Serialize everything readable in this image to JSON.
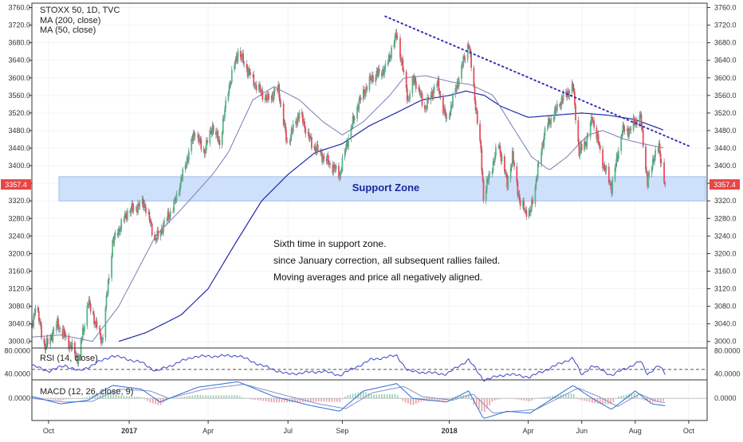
{
  "header": {
    "symbol_line": "STOXX 50, 1D, TVC",
    "ma200_label": "MA (200, close)",
    "ma50_label": "MA (50, close)"
  },
  "annotations": {
    "support_zone_label": "Support Zone",
    "comment_lines": [
      "Sixth time in support zone.",
      "since January correction, all subsequent rallies failed.",
      "Moving averages and price all negatively aligned."
    ]
  },
  "last_price_label": "3357.4",
  "rsi": {
    "label": "RSI (14, close)",
    "tick_labels": [
      "80.0000",
      "40.0000"
    ]
  },
  "macd": {
    "label": "MACD (12, 26, close, 9)",
    "tick_labels": [
      "0.0000"
    ]
  },
  "colors": {
    "up": "#53b987",
    "down": "#eb4d5c",
    "ma200": "#2029a8",
    "ma50": "#7a7eb5",
    "trendline": "#2f2fb5",
    "support_fill": "#cfe0fb",
    "support_text": "#1a2a9c",
    "rsi_line": "#3d44c8",
    "macd_line": "#2a6fd6",
    "signal_line": "#8a8fc8",
    "last_price": "#e84545"
  },
  "chart_data": [
    {
      "type": "candlestick",
      "title": "STOXX 50, 1D, TVC",
      "x_tick_labels": [
        "Oct",
        "2017",
        "Apr",
        "Jul",
        "Sep",
        "2018",
        "Apr",
        "Jun",
        "Aug",
        "Oct"
      ],
      "y_tick_labels": [
        "3760.0",
        "3720.0",
        "3680.0",
        "3640.0",
        "3600.0",
        "3560.0",
        "3520.0",
        "3480.0",
        "3440.0",
        "3400.0",
        "3360.0",
        "3320.0",
        "3280.0",
        "3240.0",
        "3200.0",
        "3160.0",
        "3120.0",
        "3080.0",
        "3040.0",
        "3000.0"
      ],
      "ylim": [
        2985,
        3770
      ],
      "x_range": [
        "2016-09-12",
        "2018-10-22"
      ],
      "price_key_points": [
        [
          "2016-09-12",
          3030
        ],
        [
          "2016-09-16",
          3085
        ],
        [
          "2016-09-27",
          2985
        ],
        [
          "2016-10-11",
          3040
        ],
        [
          "2016-11-04",
          2960
        ],
        [
          "2016-11-15",
          3090
        ],
        [
          "2016-12-01",
          3000
        ],
        [
          "2016-12-13",
          3225
        ],
        [
          "2016-12-30",
          3295
        ],
        [
          "2017-01-18",
          3315
        ],
        [
          "2017-01-31",
          3230
        ],
        [
          "2017-02-21",
          3310
        ],
        [
          "2017-03-03",
          3380
        ],
        [
          "2017-03-17",
          3480
        ],
        [
          "2017-03-27",
          3430
        ],
        [
          "2017-04-06",
          3490
        ],
        [
          "2017-04-14",
          3450
        ],
        [
          "2017-04-24",
          3575
        ],
        [
          "2017-05-05",
          3660
        ],
        [
          "2017-05-26",
          3580
        ],
        [
          "2017-06-08",
          3550
        ],
        [
          "2017-06-20",
          3575
        ],
        [
          "2017-06-30",
          3450
        ],
        [
          "2017-07-14",
          3520
        ],
        [
          "2017-07-28",
          3450
        ],
        [
          "2017-08-10",
          3420
        ],
        [
          "2017-08-29",
          3380
        ],
        [
          "2017-09-06",
          3450
        ],
        [
          "2017-09-19",
          3540
        ],
        [
          "2017-10-04",
          3600
        ],
        [
          "2017-10-20",
          3620
        ],
        [
          "2017-11-02",
          3700
        ],
        [
          "2017-11-15",
          3550
        ],
        [
          "2017-11-22",
          3600
        ],
        [
          "2017-12-04",
          3530
        ],
        [
          "2017-12-18",
          3590
        ],
        [
          "2017-12-29",
          3500
        ],
        [
          "2018-01-23",
          3680
        ],
        [
          "2018-02-06",
          3430
        ],
        [
          "2018-02-09",
          3330
        ],
        [
          "2018-02-26",
          3450
        ],
        [
          "2018-03-08",
          3360
        ],
        [
          "2018-03-14",
          3420
        ],
        [
          "2018-03-23",
          3310
        ],
        [
          "2018-04-03",
          3290
        ],
        [
          "2018-04-20",
          3480
        ],
        [
          "2018-05-09",
          3550
        ],
        [
          "2018-05-22",
          3580
        ],
        [
          "2018-05-29",
          3430
        ],
        [
          "2018-06-07",
          3460
        ],
        [
          "2018-06-13",
          3510
        ],
        [
          "2018-06-26",
          3400
        ],
        [
          "2018-07-05",
          3350
        ],
        [
          "2018-07-17",
          3480
        ],
        [
          "2018-07-26",
          3480
        ],
        [
          "2018-07-31",
          3500
        ],
        [
          "2018-08-07",
          3510
        ],
        [
          "2018-08-15",
          3360
        ],
        [
          "2018-08-22",
          3420
        ],
        [
          "2018-08-28",
          3440
        ],
        [
          "2018-09-04",
          3357.4
        ]
      ],
      "ma50_key_points": [
        [
          "2016-09-12",
          3010
        ],
        [
          "2016-10-15",
          3015
        ],
        [
          "2016-11-20",
          3000
        ],
        [
          "2016-12-20",
          3080
        ],
        [
          "2017-01-31",
          3240
        ],
        [
          "2017-03-01",
          3300
        ],
        [
          "2017-04-06",
          3380
        ],
        [
          "2017-04-24",
          3430
        ],
        [
          "2017-05-22",
          3550
        ],
        [
          "2017-06-15",
          3580
        ],
        [
          "2017-07-14",
          3550
        ],
        [
          "2017-08-10",
          3500
        ],
        [
          "2017-09-01",
          3470
        ],
        [
          "2017-09-25",
          3500
        ],
        [
          "2017-10-25",
          3560
        ],
        [
          "2017-11-10",
          3600
        ],
        [
          "2017-12-05",
          3605
        ],
        [
          "2018-01-05",
          3590
        ],
        [
          "2018-01-25",
          3585
        ],
        [
          "2018-02-20",
          3560
        ],
        [
          "2018-03-20",
          3470
        ],
        [
          "2018-04-05",
          3420
        ],
        [
          "2018-04-25",
          3390
        ],
        [
          "2018-05-15",
          3420
        ],
        [
          "2018-06-08",
          3470
        ],
        [
          "2018-06-25",
          3480
        ],
        [
          "2018-07-20",
          3460
        ],
        [
          "2018-08-10",
          3450
        ],
        [
          "2018-09-04",
          3440
        ]
      ],
      "ma200_key_points": [
        [
          "2016-12-20",
          3000
        ],
        [
          "2017-01-20",
          3020
        ],
        [
          "2017-03-01",
          3060
        ],
        [
          "2017-04-01",
          3120
        ],
        [
          "2017-05-01",
          3220
        ],
        [
          "2017-06-01",
          3320
        ],
        [
          "2017-07-01",
          3380
        ],
        [
          "2017-08-01",
          3430
        ],
        [
          "2017-09-01",
          3450
        ],
        [
          "2017-10-01",
          3490
        ],
        [
          "2017-11-01",
          3520
        ],
        [
          "2017-12-01",
          3550
        ],
        [
          "2018-01-01",
          3560
        ],
        [
          "2018-01-20",
          3570
        ],
        [
          "2018-02-10",
          3560
        ],
        [
          "2018-03-01",
          3535
        ],
        [
          "2018-04-01",
          3510
        ],
        [
          "2018-05-01",
          3515
        ],
        [
          "2018-06-01",
          3520
        ],
        [
          "2018-07-01",
          3515
        ],
        [
          "2018-08-01",
          3505
        ],
        [
          "2018-09-04",
          3480
        ]
      ],
      "trendline": [
        [
          "2017-10-20",
          3740
        ],
        [
          "2018-10-01",
          3445
        ]
      ],
      "support_zone": [
        3320,
        3375
      ]
    },
    {
      "type": "line",
      "title": "RSI (14, close)",
      "y_tick_labels": [
        "80.0000",
        "40.0000"
      ],
      "ylim": [
        30,
        85
      ],
      "reference_level": 48,
      "key_points": [
        [
          "2016-09-12",
          55
        ],
        [
          "2016-10-01",
          45
        ],
        [
          "2016-10-20",
          55
        ],
        [
          "2016-11-05",
          45
        ],
        [
          "2016-12-13",
          72
        ],
        [
          "2017-01-15",
          60
        ],
        [
          "2017-02-01",
          45
        ],
        [
          "2017-03-15",
          70
        ],
        [
          "2017-05-05",
          72
        ],
        [
          "2017-06-01",
          55
        ],
        [
          "2017-06-30",
          40
        ],
        [
          "2017-08-10",
          45
        ],
        [
          "2017-08-29",
          38
        ],
        [
          "2017-10-04",
          65
        ],
        [
          "2017-11-02",
          72
        ],
        [
          "2017-11-15",
          45
        ],
        [
          "2017-12-29",
          40
        ],
        [
          "2018-01-23",
          65
        ],
        [
          "2018-02-09",
          30
        ],
        [
          "2018-03-08",
          40
        ],
        [
          "2018-04-03",
          35
        ],
        [
          "2018-05-22",
          68
        ],
        [
          "2018-06-01",
          38
        ],
        [
          "2018-06-13",
          55
        ],
        [
          "2018-07-05",
          38
        ],
        [
          "2018-08-07",
          62
        ],
        [
          "2018-08-15",
          40
        ],
        [
          "2018-08-28",
          55
        ],
        [
          "2018-09-04",
          40
        ]
      ]
    },
    {
      "type": "line",
      "title": "MACD (12, 26, close, 9)",
      "y_tick_labels": [
        "0.0000"
      ],
      "ylim": [
        -60,
        50
      ],
      "series": [
        {
          "key_points": [
            [
              "2016-09-12",
              5
            ],
            [
              "2016-10-15",
              -15
            ],
            [
              "2016-11-15",
              -5
            ],
            [
              "2016-12-13",
              35
            ],
            [
              "2017-01-15",
              25
            ],
            [
              "2017-02-05",
              -10
            ],
            [
              "2017-03-20",
              30
            ],
            [
              "2017-05-05",
              45
            ],
            [
              "2017-06-15",
              5
            ],
            [
              "2017-07-28",
              -20
            ],
            [
              "2017-08-29",
              -35
            ],
            [
              "2017-09-25",
              20
            ],
            [
              "2017-11-02",
              40
            ],
            [
              "2017-11-20",
              0
            ],
            [
              "2017-12-29",
              -10
            ],
            [
              "2018-01-23",
              20
            ],
            [
              "2018-02-09",
              -55
            ],
            [
              "2018-03-08",
              -35
            ],
            [
              "2018-04-03",
              -40
            ],
            [
              "2018-05-22",
              35
            ],
            [
              "2018-06-13",
              0
            ],
            [
              "2018-07-05",
              -30
            ],
            [
              "2018-08-01",
              20
            ],
            [
              "2018-08-20",
              -15
            ],
            [
              "2018-09-04",
              -20
            ]
          ]
        },
        {
          "key_points": [
            [
              "2016-09-12",
              0
            ],
            [
              "2016-10-20",
              -10
            ],
            [
              "2016-11-20",
              -8
            ],
            [
              "2016-12-20",
              25
            ],
            [
              "2017-01-25",
              20
            ],
            [
              "2017-02-15",
              0
            ],
            [
              "2017-03-28",
              25
            ],
            [
              "2017-05-12",
              38
            ],
            [
              "2017-06-25",
              10
            ],
            [
              "2017-08-05",
              -15
            ],
            [
              "2017-09-05",
              -28
            ],
            [
              "2017-10-05",
              15
            ],
            [
              "2017-11-10",
              32
            ],
            [
              "2017-12-01",
              5
            ],
            [
              "2018-01-05",
              -5
            ],
            [
              "2018-01-28",
              12
            ],
            [
              "2018-02-20",
              -40
            ],
            [
              "2018-03-15",
              -35
            ],
            [
              "2018-04-10",
              -30
            ],
            [
              "2018-05-28",
              28
            ],
            [
              "2018-06-20",
              5
            ],
            [
              "2018-07-12",
              -22
            ],
            [
              "2018-08-06",
              12
            ],
            [
              "2018-08-25",
              -8
            ],
            [
              "2018-09-04",
              -12
            ]
          ]
        }
      ]
    }
  ]
}
